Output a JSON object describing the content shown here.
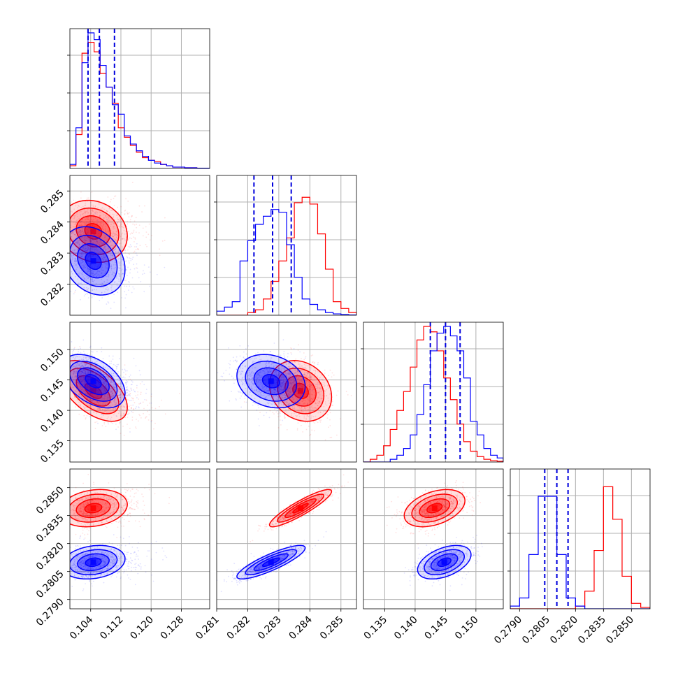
{
  "chart_data": {
    "type": "corner",
    "grid": true,
    "colors": {
      "blue": "#0000ff",
      "red": "#ff0000",
      "quantile_line": "#0000dd"
    },
    "params": [
      {
        "range": [
          0.0985,
          0.1355
        ],
        "ticks": [
          "0.104",
          "0.112",
          "0.120",
          "0.128"
        ]
      },
      {
        "range": [
          0.281,
          0.2855
        ],
        "ticks": [
          "0.281",
          "0.282",
          "0.283",
          "0.284",
          "0.285"
        ]
      },
      {
        "range": [
          0.1315,
          0.1545
        ],
        "ticks": [
          "0.135",
          "0.140",
          "0.145",
          "0.150"
        ]
      },
      {
        "range": [
          0.2785,
          0.286
        ],
        "ticks": [
          "0.2790",
          "0.2805",
          "0.2820",
          "0.2835",
          "0.2850"
        ]
      }
    ],
    "series": [
      {
        "color": "#0000ff",
        "mean": [
          0.1047,
          0.28275,
          0.1448,
          0.281
        ],
        "std": [
          0.0042,
          0.00055,
          0.0022,
          0.00045
        ],
        "corr": {
          "0-1": -0.25,
          "0-2": -0.45,
          "1-2": -0.2,
          "0-3": 0.2,
          "1-3": 0.85,
          "2-3": 0.45
        },
        "quantiles": [
          [
            0.1033,
            0.1063,
            0.1103
          ],
          [
            0.2822,
            0.2828,
            0.2834
          ],
          [
            0.1425,
            0.145,
            0.1474
          ],
          [
            0.28035,
            0.281,
            0.2816
          ]
        ],
        "hist": [
          {
            "bins": [
              0.0985,
              0.1001,
              0.1017,
              0.1033,
              0.1049,
              0.1065,
              0.1081,
              0.1097,
              0.1113,
              0.1129,
              0.1145,
              0.1161,
              0.1177,
              0.1193,
              0.1209,
              0.1225,
              0.1241,
              0.1257,
              0.1273,
              0.1289,
              0.1305,
              0.1321,
              0.1337,
              0.1355
            ],
            "counts": [
              0.03,
              0.3,
              0.78,
              1.0,
              0.95,
              0.76,
              0.6,
              0.47,
              0.4,
              0.24,
              0.18,
              0.13,
              0.09,
              0.06,
              0.04,
              0.03,
              0.02,
              0.01,
              0.01,
              0.005,
              0.005,
              0.002,
              0.002
            ]
          },
          {
            "bins": [
              0.281,
              0.28125,
              0.2815,
              0.28175,
              0.282,
              0.28225,
              0.2825,
              0.28275,
              0.283,
              0.28325,
              0.2835,
              0.28375,
              0.284,
              0.28425,
              0.2845,
              0.28475,
              0.285,
              0.28525,
              0.2855
            ],
            "counts": [
              0.03,
              0.06,
              0.1,
              0.4,
              0.55,
              0.67,
              0.73,
              0.78,
              0.76,
              0.52,
              0.28,
              0.12,
              0.08,
              0.04,
              0.02,
              0.01,
              0.005,
              0.002
            ]
          },
          {
            "bins": [
              0.1315,
              0.1326,
              0.1337,
              0.1348,
              0.1359,
              0.137,
              0.1381,
              0.1392,
              0.1403,
              0.1414,
              0.1425,
              0.1436,
              0.1447,
              0.1458,
              0.1469,
              0.148,
              0.1491,
              0.1502,
              0.1513,
              0.1524,
              0.1535,
              0.1545
            ],
            "counts": [
              0.0,
              0.0,
              0.0,
              0.0,
              0.02,
              0.05,
              0.1,
              0.2,
              0.35,
              0.57,
              0.82,
              0.95,
              1.0,
              0.93,
              0.82,
              0.62,
              0.3,
              0.2,
              0.1,
              0.05,
              0.03
            ]
          },
          {
            "bins": [
              0.2785,
              0.279,
              0.2795,
              0.28,
              0.2805,
              0.281,
              0.2815,
              0.282,
              0.2825,
              0.283,
              0.2835,
              0.284,
              0.2845,
              0.285,
              0.2855,
              0.286
            ],
            "counts": [
              0.02,
              0.08,
              0.4,
              0.83,
              0.83,
              0.4,
              0.08,
              0.02,
              0.0,
              0.0,
              0.0,
              0.0,
              0.0,
              0.0,
              0.0
            ]
          }
        ]
      },
      {
        "color": "#ff0000",
        "mean": [
          0.1047,
          0.2837,
          0.1432,
          0.2839
        ],
        "std": [
          0.0045,
          0.0005,
          0.0025,
          0.0005
        ],
        "corr": {
          "0-1": -0.15,
          "0-2": -0.55,
          "1-2": -0.2,
          "0-3": 0.2,
          "1-3": 0.9,
          "2-3": 0.4
        },
        "hist": [
          {
            "bins": [
              0.0985,
              0.1001,
              0.1017,
              0.1033,
              0.1049,
              0.1065,
              0.1081,
              0.1097,
              0.1113,
              0.1129,
              0.1145,
              0.1161,
              0.1177,
              0.1193,
              0.1209,
              0.1225,
              0.1241,
              0.1257,
              0.1273,
              0.1289,
              0.1305,
              0.1321,
              0.1337,
              0.1355
            ],
            "counts": [
              0.02,
              0.25,
              0.85,
              0.93,
              0.86,
              0.7,
              0.6,
              0.48,
              0.3,
              0.23,
              0.17,
              0.12,
              0.08,
              0.06,
              0.05,
              0.03,
              0.02,
              0.01,
              0.01,
              0.005,
              0.005,
              0.002,
              0.002
            ]
          },
          {
            "bins": [
              0.281,
              0.28125,
              0.2815,
              0.28175,
              0.282,
              0.28225,
              0.2825,
              0.28275,
              0.283,
              0.28325,
              0.2835,
              0.28375,
              0.284,
              0.28425,
              0.2845,
              0.28475,
              0.285,
              0.28525,
              0.2855
            ],
            "counts": [
              0.0,
              0.0,
              0.0,
              0.0,
              0.02,
              0.04,
              0.12,
              0.25,
              0.4,
              0.57,
              0.83,
              0.87,
              0.82,
              0.6,
              0.34,
              0.1,
              0.05,
              0.02
            ]
          },
          {
            "bins": [
              0.1315,
              0.1326,
              0.1337,
              0.1348,
              0.1359,
              0.137,
              0.1381,
              0.1392,
              0.1403,
              0.1414,
              0.1425,
              0.1436,
              0.1447,
              0.1458,
              0.1469,
              0.148,
              0.1491,
              0.1502,
              0.1513,
              0.1524,
              0.1535,
              0.1545
            ],
            "counts": [
              0.0,
              0.02,
              0.05,
              0.12,
              0.24,
              0.38,
              0.52,
              0.7,
              0.9,
              1.0,
              0.96,
              0.82,
              0.62,
              0.46,
              0.28,
              0.15,
              0.08,
              0.04,
              0.02,
              0.01,
              0.005
            ]
          },
          {
            "bins": [
              0.2785,
              0.279,
              0.2795,
              0.28,
              0.2805,
              0.281,
              0.2815,
              0.282,
              0.2825,
              0.283,
              0.2835,
              0.284,
              0.2845,
              0.285,
              0.2855,
              0.286
            ],
            "counts": [
              0.0,
              0.0,
              0.0,
              0.0,
              0.0,
              0.0,
              0.0,
              0.02,
              0.13,
              0.43,
              0.9,
              0.66,
              0.24,
              0.04,
              0.01
            ]
          }
        ]
      }
    ]
  }
}
